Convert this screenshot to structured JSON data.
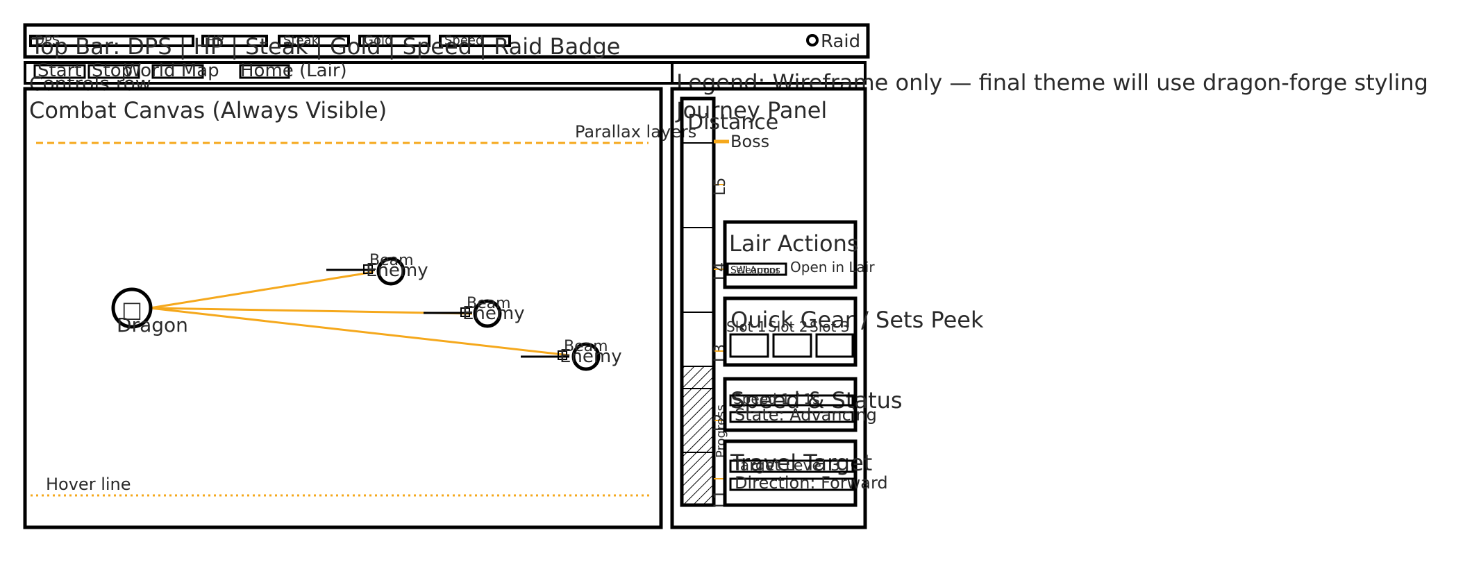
{
  "colors": {
    "accent": "#f5a81c",
    "ink": "#000000",
    "text": "#2a2a2a"
  },
  "top_bar": {
    "title": "Top Bar: DPS | HP | Steak | Gold | Speed | Raid Badge",
    "chips": [
      "DPS",
      "HP",
      "Steak",
      "Gold",
      "Speed"
    ],
    "raid_label": "Raid"
  },
  "controls": {
    "label": "Controls row",
    "buttons": [
      "Start",
      "Stop",
      "World Map",
      "Home (Lair)"
    ]
  },
  "legend_note": "Legend: Wireframe only — final theme will use dragon-forge styling",
  "combat": {
    "title": "Combat Canvas (Always Visible)",
    "parallax_label": "Parallax layers",
    "hover_label": "Hover line",
    "dragon_label": "Dragon",
    "dragon_icon": "dragon-icon",
    "enemies": [
      {
        "label": "Enemy",
        "beam_label": "Beam"
      },
      {
        "label": "Enemy",
        "beam_label": "Beam"
      },
      {
        "label": "Enemy",
        "beam_label": "Beam"
      }
    ]
  },
  "journey": {
    "title": "Journey Panel",
    "distance_title": "Distance",
    "boss_label": "Boss",
    "tick_labels": [
      "L5",
      "L4",
      "L3",
      "L2",
      "L1"
    ],
    "side_label": "Progress",
    "lair_actions": {
      "title": "Lair Actions",
      "buttons": [
        "Sell",
        "Armor",
        "Weapons"
      ],
      "open_label": "Open in Lair"
    },
    "gear": {
      "title": "Quick Gear / Sets Peek",
      "slots": [
        "Slot 1",
        "Slot 2",
        "Slot 3"
      ]
    },
    "speed": {
      "title": "Speed & Status",
      "speed_value": "Speed 1 / 1s",
      "state": "State: Advancing"
    },
    "travel": {
      "title": "Travel Target",
      "target": "Target Level 3",
      "direction": "Direction: Forward"
    }
  }
}
